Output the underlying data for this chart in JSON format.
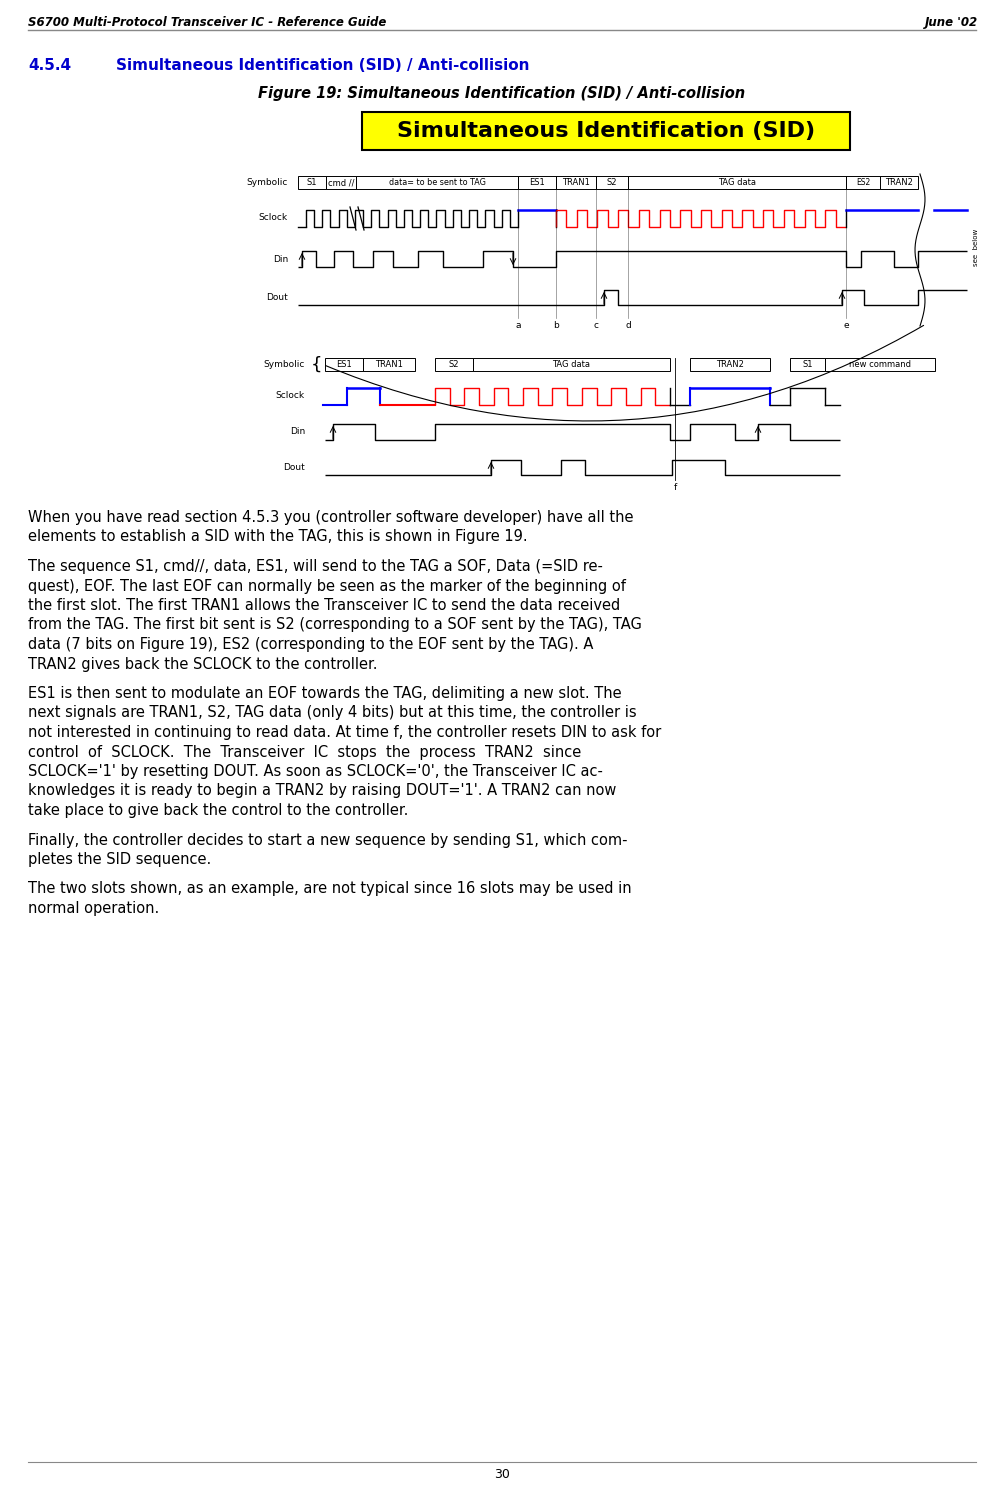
{
  "page_title": "S6700 Multi-Protocol Transceiver IC - Reference Guide",
  "page_date": "June '02",
  "section_num": "4.5.4",
  "section_title": "Simultaneous Identification (SID) / Anti-collision",
  "figure_title": "Figure 19: Simultaneous Identification (SID) / Anti-collision",
  "sid_box_text": "Simultaneous Identification (SID)",
  "sid_box_bg": "#FFFF00",
  "sid_box_border": "#000000",
  "body_paragraphs": [
    [
      "When you have read section 4.5.3 you (controller software developer) have all the",
      "elements to establish a SID with the TAG, this is shown in Figure 19."
    ],
    [
      "The sequence S1, cmd//, data, ES1, will send to the TAG a SOF, Data (=SID re-",
      "quest), EOF. The last EOF can normally be seen as the marker of the beginning of",
      "the first slot. The first TRAN1 allows the Transceiver IC to send the data received",
      "from the TAG. The first bit sent is S2 (corresponding to a SOF sent by the TAG), TAG",
      "data (7 bits on Figure 19), ES2 (corresponding to the EOF sent by the TAG). A",
      "TRAN2 gives back the SCLOCK to the controller."
    ],
    [
      "ES1 is then sent to modulate an EOF towards the TAG, delimiting a new slot. The",
      "next signals are TRAN1, S2, TAG data (only 4 bits) but at this time, the controller is",
      "not interested in continuing to read data. At time f, the controller resets DIN to ask for",
      "control  of  SCLOCK.  The  Transceiver  IC  stops  the  process  TRAN2  since",
      "SCLOCK='1' by resetting DOUT. As soon as SCLOCK='0', the Transceiver IC ac-",
      "knowledges it is ready to begin a TRAN2 by raising DOUT='1'. A TRAN2 can now",
      "take place to give back the control to the controller."
    ],
    [
      "Finally, the controller decides to start a new sequence by sending S1, which com-",
      "pletes the SID sequence."
    ],
    [
      "The two slots shown, as an example, are not typical since 16 slots may be used in",
      "normal operation."
    ]
  ],
  "page_number": "30",
  "bg_color": "#ffffff",
  "header_line_color": "#888888",
  "footer_line_color": "#888888",
  "text_color": "#000000",
  "section_title_color": "#0000CC",
  "figure_title_color": "#000000"
}
